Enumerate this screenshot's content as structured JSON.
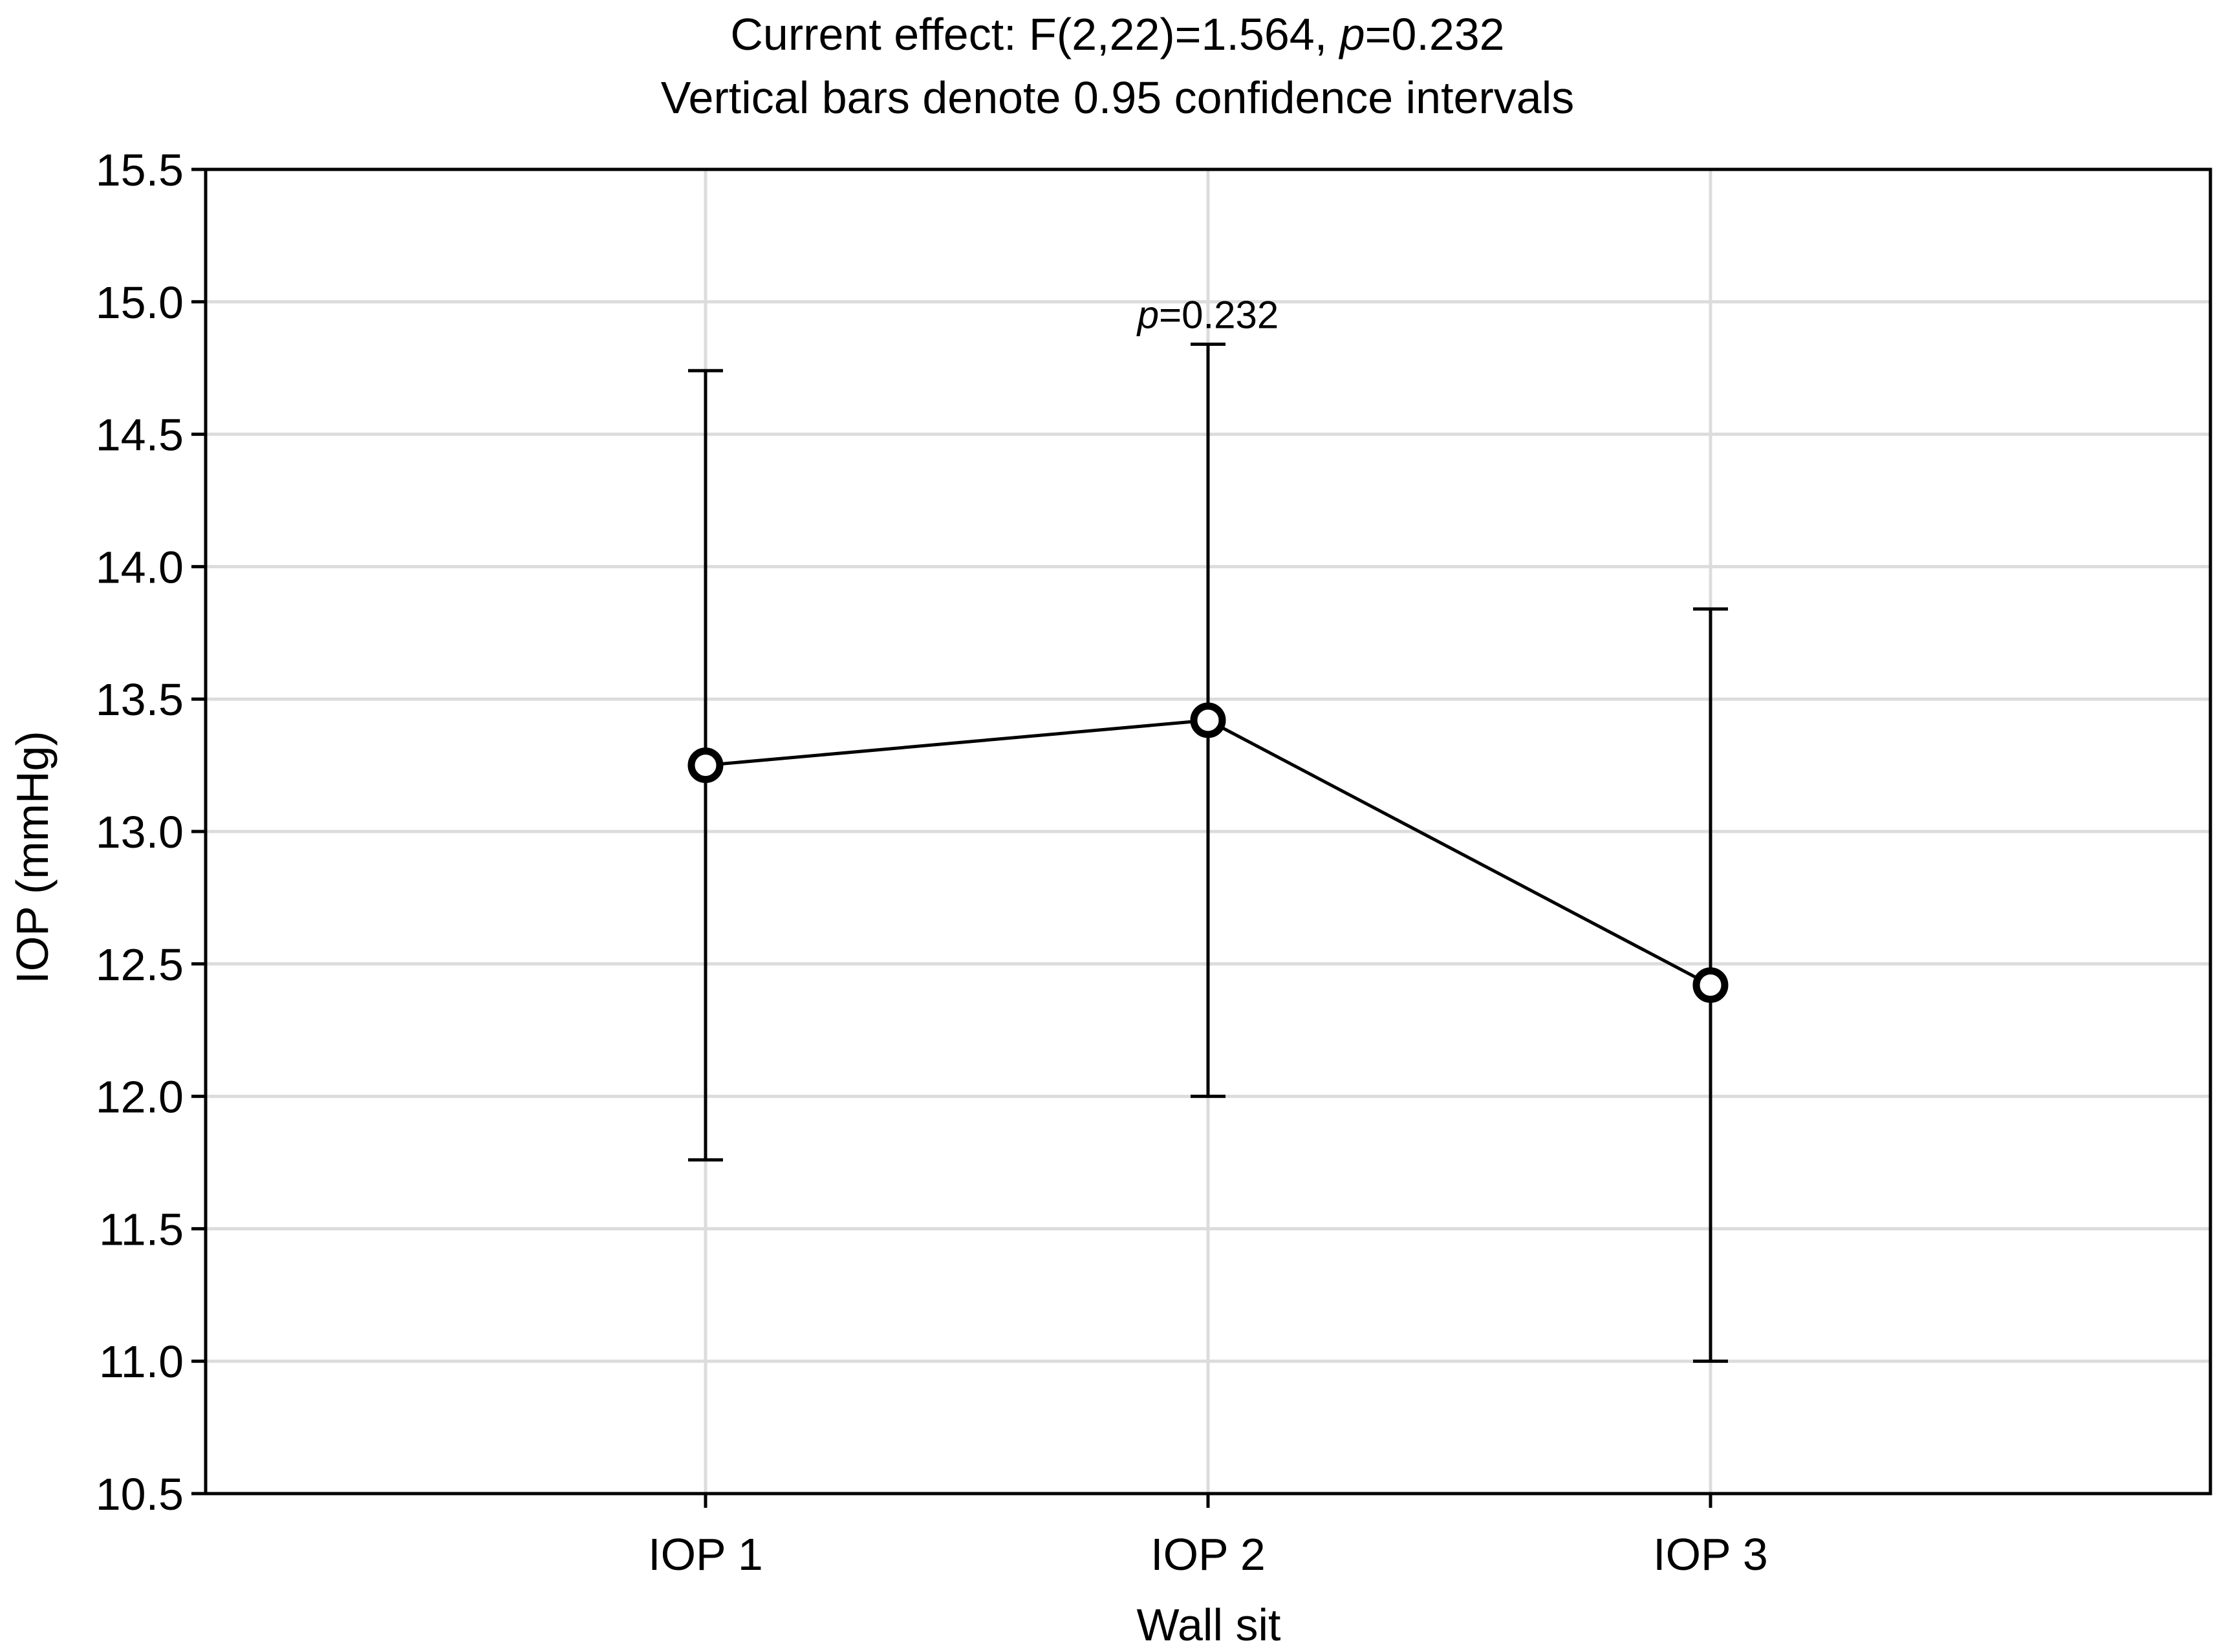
{
  "chart_data": {
    "type": "line",
    "title_line1": {
      "prefix": "Current effect: F(2,22)=1.564, ",
      "p_symbol": "p",
      "suffix": "=0.232"
    },
    "title_line2": "Vertical bars denote 0.95 confidence intervals",
    "xlabel": "Wall sit",
    "ylabel": "IOP (mmHg)",
    "categories": [
      "IOP 1",
      "IOP 2",
      "IOP 3"
    ],
    "series": [
      {
        "name": "IOP",
        "values": [
          13.25,
          13.42,
          12.42
        ],
        "ci_lower": [
          11.76,
          12.0,
          11.0
        ],
        "ci_upper": [
          14.74,
          14.84,
          13.84
        ]
      }
    ],
    "ylim": [
      10.5,
      15.5
    ],
    "yticks": [
      "10.5",
      "11.0",
      "11.5",
      "12.0",
      "12.5",
      "13.0",
      "13.5",
      "14.0",
      "14.5",
      "15.0",
      "15.5"
    ],
    "grid": true,
    "annotation": {
      "p_symbol": "p",
      "text": "=0.232",
      "category": "IOP 2"
    },
    "colors": {
      "line": "#000000",
      "grid": "#dcdcdc",
      "axis": "#000000"
    }
  }
}
